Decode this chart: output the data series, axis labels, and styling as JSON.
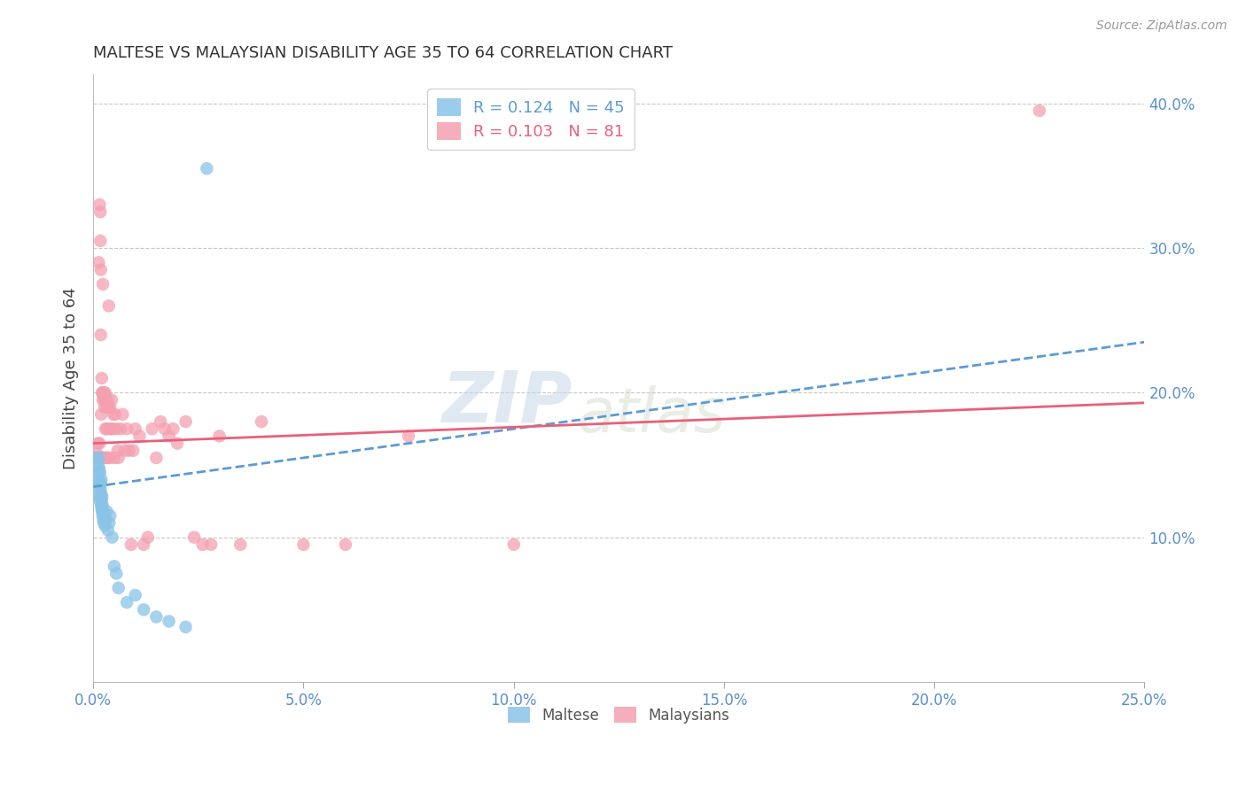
{
  "title": "MALTESE VS MALAYSIAN DISABILITY AGE 35 TO 64 CORRELATION CHART",
  "source": "Source: ZipAtlas.com",
  "ylabel": "Disability Age 35 to 64",
  "xlim": [
    0.0,
    0.25
  ],
  "ylim": [
    0.0,
    0.42
  ],
  "xticks": [
    0.0,
    0.05,
    0.1,
    0.15,
    0.2,
    0.25
  ],
  "yticks_right": [
    0.1,
    0.2,
    0.3,
    0.4
  ],
  "maltese_color": "#89C4E8",
  "malaysian_color": "#F4A0B0",
  "line_maltese_color": "#5B9BD5",
  "line_malaysian_color": "#E8607A",
  "watermark_zip": "ZIP",
  "watermark_atlas": "atlas",
  "background_color": "#FFFFFF",
  "grid_color": "#C8C8C8",
  "maltese_x": [
    0.0008,
    0.001,
    0.0012,
    0.0013,
    0.0013,
    0.0014,
    0.0015,
    0.0015,
    0.0016,
    0.0016,
    0.0016,
    0.0017,
    0.0017,
    0.0018,
    0.0018,
    0.0019,
    0.0019,
    0.0019,
    0.002,
    0.002,
    0.0021,
    0.0021,
    0.0022,
    0.0022,
    0.0023,
    0.0024,
    0.0025,
    0.0026,
    0.0028,
    0.003,
    0.0032,
    0.0035,
    0.0038,
    0.004,
    0.0045,
    0.005,
    0.0055,
    0.006,
    0.008,
    0.01,
    0.012,
    0.015,
    0.018,
    0.022,
    0.027
  ],
  "maltese_y": [
    0.155,
    0.15,
    0.14,
    0.145,
    0.155,
    0.148,
    0.13,
    0.138,
    0.125,
    0.135,
    0.145,
    0.127,
    0.133,
    0.128,
    0.138,
    0.122,
    0.13,
    0.14,
    0.12,
    0.125,
    0.118,
    0.128,
    0.115,
    0.122,
    0.118,
    0.112,
    0.11,
    0.115,
    0.108,
    0.112,
    0.118,
    0.105,
    0.11,
    0.115,
    0.1,
    0.08,
    0.075,
    0.065,
    0.055,
    0.06,
    0.05,
    0.045,
    0.042,
    0.038,
    0.355
  ],
  "malaysian_x": [
    0.0008,
    0.001,
    0.0011,
    0.0012,
    0.0013,
    0.0014,
    0.0015,
    0.0015,
    0.0016,
    0.0017,
    0.0017,
    0.0018,
    0.0018,
    0.0019,
    0.0019,
    0.002,
    0.002,
    0.0021,
    0.0021,
    0.0022,
    0.0022,
    0.0023,
    0.0023,
    0.0024,
    0.0025,
    0.0025,
    0.0026,
    0.0027,
    0.0028,
    0.0029,
    0.003,
    0.003,
    0.0031,
    0.0032,
    0.0033,
    0.0034,
    0.0035,
    0.0036,
    0.0037,
    0.0038,
    0.0039,
    0.004,
    0.0042,
    0.0044,
    0.0046,
    0.0048,
    0.005,
    0.0052,
    0.0055,
    0.0058,
    0.006,
    0.0065,
    0.007,
    0.0075,
    0.008,
    0.0085,
    0.009,
    0.0095,
    0.01,
    0.011,
    0.012,
    0.013,
    0.014,
    0.015,
    0.016,
    0.017,
    0.018,
    0.019,
    0.02,
    0.022,
    0.024,
    0.026,
    0.028,
    0.03,
    0.035,
    0.04,
    0.05,
    0.06,
    0.075,
    0.225,
    0.1
  ],
  "malaysian_y": [
    0.158,
    0.155,
    0.165,
    0.155,
    0.29,
    0.155,
    0.165,
    0.33,
    0.155,
    0.305,
    0.325,
    0.24,
    0.285,
    0.155,
    0.185,
    0.155,
    0.21,
    0.155,
    0.2,
    0.2,
    0.155,
    0.195,
    0.275,
    0.2,
    0.195,
    0.155,
    0.2,
    0.19,
    0.2,
    0.175,
    0.155,
    0.195,
    0.19,
    0.175,
    0.155,
    0.195,
    0.19,
    0.19,
    0.26,
    0.175,
    0.155,
    0.19,
    0.175,
    0.195,
    0.175,
    0.185,
    0.155,
    0.185,
    0.175,
    0.16,
    0.155,
    0.175,
    0.185,
    0.16,
    0.175,
    0.16,
    0.095,
    0.16,
    0.175,
    0.17,
    0.095,
    0.1,
    0.175,
    0.155,
    0.18,
    0.175,
    0.17,
    0.175,
    0.165,
    0.18,
    0.1,
    0.095,
    0.095,
    0.17,
    0.095,
    0.18,
    0.095,
    0.095,
    0.17,
    0.395,
    0.095
  ]
}
